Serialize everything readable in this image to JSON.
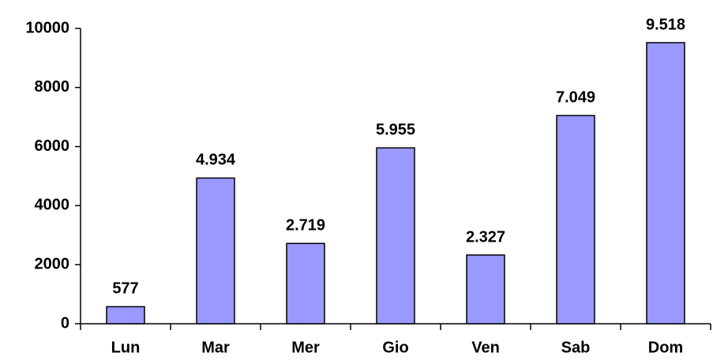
{
  "chart_data": {
    "type": "bar",
    "categories": [
      "Lun",
      "Mar",
      "Mer",
      "Gio",
      "Ven",
      "Sab",
      "Dom"
    ],
    "values": [
      577,
      4934,
      2719,
      5955,
      2327,
      7049,
      9518
    ],
    "value_labels": [
      "577",
      "4.934",
      "2.719",
      "5.955",
      "2.327",
      "7.049",
      "9.518"
    ],
    "color": "#9999ff",
    "ylim": [
      0,
      10000
    ],
    "yticks": [
      0,
      2000,
      4000,
      6000,
      8000,
      10000
    ],
    "grid": false
  }
}
